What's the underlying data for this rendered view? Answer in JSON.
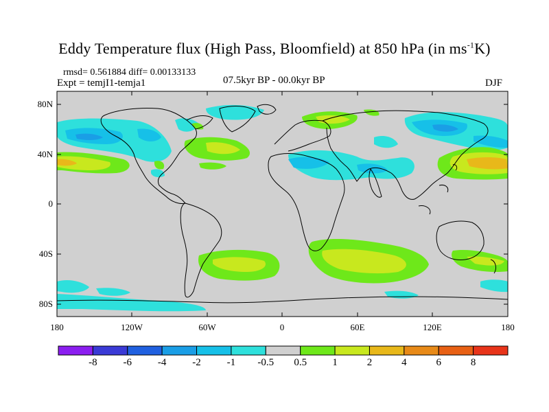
{
  "title": {
    "main": "Eddy Temperature flux (High Pass, Bloomfield) at 850 hPa (in ms",
    "sup": "-1",
    "end": "K)"
  },
  "stats": "rmsd= 0.561884 diff= 0.00133133",
  "expt": "Expt = temjI1-temja1",
  "period": "07.5kyr BP - 00.0kyr BP",
  "season": "DJF",
  "lat_labels": [
    "80N",
    "40N",
    "0",
    "40S",
    "80S"
  ],
  "lon_labels": [
    "180",
    "120W",
    "60W",
    "0",
    "60E",
    "120E",
    "180"
  ],
  "colorbar": {
    "labels": [
      "-8",
      "-6",
      "-4",
      "-2",
      "-1",
      "-0.5",
      "0.5",
      "1",
      "2",
      "4",
      "6",
      "8"
    ],
    "colors": [
      "#8b1ef0",
      "#3a3ad6",
      "#2060e0",
      "#1a9ee6",
      "#16c0e8",
      "#2ee0dc",
      "#d0d0d0",
      "#6ee81a",
      "#c8e81e",
      "#e8b81a",
      "#e88a18",
      "#e86014",
      "#e8341a"
    ]
  },
  "colors": {
    "land_bg": "#d0d0d0",
    "coast": "#000000"
  }
}
